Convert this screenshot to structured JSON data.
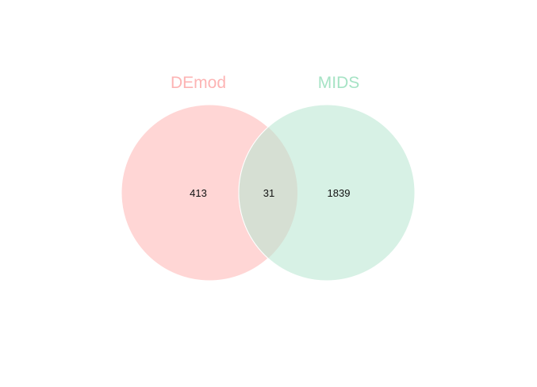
{
  "diagram": {
    "type": "venn",
    "sets": [
      {
        "name": "DEmod",
        "color": "#fdb4b4",
        "fill": "#ffd6d5"
      },
      {
        "name": "MIDS",
        "color": "#a6e3c5",
        "fill": "#d7f1e5"
      }
    ],
    "intersection_fill": "#d6dfd3",
    "regions": {
      "only_a": "413",
      "both": "31",
      "only_b": "1839"
    }
  }
}
